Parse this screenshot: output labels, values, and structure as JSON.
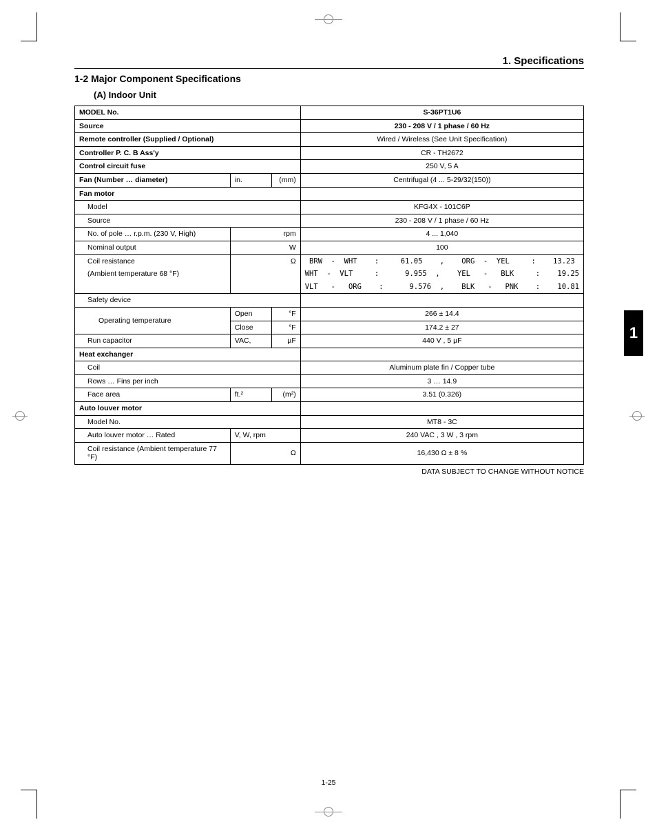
{
  "header": {
    "page_title": "1. Specifications"
  },
  "section": {
    "num_title": "1-2  Major Component Specifications",
    "sub": "(A)  Indoor Unit"
  },
  "tab": "1",
  "page_num": "1-25",
  "notice": "DATA SUBJECT TO CHANGE WITHOUT NOTICE",
  "rows": {
    "model_no_l": "MODEL No.",
    "model_no_v": "S-36PT1U6",
    "source_l": "Source",
    "source_v": "230 - 208 V / 1 phase / 60 Hz",
    "remote_l": "Remote  controller (Supplied / Optional)",
    "remote_v": "Wired / Wireless (See Unit Specification)",
    "pcb_l": "Controller P. C. B Ass'y",
    "pcb_v": "CR - TH2672",
    "fuse_l": "Control circuit fuse",
    "fuse_v": "250 V, 5 A",
    "fan_l": "Fan (Number … diameter)",
    "fan_u1": "in.",
    "fan_u2": "(mm)",
    "fan_v": "Centrifugal (4 ... 5-29/32(150))",
    "fanmotor_l": "Fan motor",
    "fm_model_l": "Model",
    "fm_model_v": "KFG4X - 101C6P",
    "fm_source_l": "Source",
    "fm_source_v": "230 - 208 V / 1 phase / 60 Hz",
    "fm_pole_l": "No. of pole … r.p.m. (230 V, High)",
    "fm_pole_u": "rpm",
    "fm_pole_v": "4 ...  1,040",
    "fm_nom_l": "Nominal output",
    "fm_nom_u": "W",
    "fm_nom_v": "100",
    "fm_coil_l": "Coil resistance",
    "fm_coil_u": "Ω",
    "fm_coil_v1": "BRW  -  WHT    :     61.05    ,    ORG  -  YEL     :    13.23",
    "fm_amb_l": "(Ambient temperature 68 °F)",
    "fm_coil_v2": "WHT  -  VLT     :      9.955  ,    YEL   -   BLK     :    19.25",
    "fm_coil_v3": "VLT   -   ORG    :      9.576  ,    BLK   -   PNK    :    10.81",
    "safety_l": "Safety device",
    "optemp_l": "Operating temperature",
    "optemp_open_l": "Open",
    "optemp_open_u": "°F",
    "optemp_open_v": "266    ±  14.4",
    "optemp_close_l": "Close",
    "optemp_close_u": "°F",
    "optemp_close_v": "174.2  ±  27",
    "runcap_l": "Run capacitor",
    "runcap_u1": "VAC,",
    "runcap_u2": "µF",
    "runcap_v": "440 V , 5 µF",
    "hx_l": "Heat exchanger",
    "coil_l": "Coil",
    "coil_v": "Aluminum plate fin / Copper tube",
    "rows_l": "Rows … Fins per inch",
    "rows_v": "3 …  14.9",
    "face_l": "Face area",
    "face_u1": "ft.²",
    "face_u2": "(m²)",
    "face_v": "3.51 (0.326)",
    "alm_l": "Auto louver motor",
    "alm_model_l": "Model No.",
    "alm_model_v": "MT8 - 3C",
    "alm_rated_l": "Auto louver motor … Rated",
    "alm_rated_u": "V, W, rpm",
    "alm_rated_v": "240 VAC , 3 W , 3 rpm",
    "alm_coil_l": "Coil resistance (Ambient temperature 77 °F)",
    "alm_coil_u": "Ω",
    "alm_coil_v": "16,430 Ω ± 8 %"
  }
}
